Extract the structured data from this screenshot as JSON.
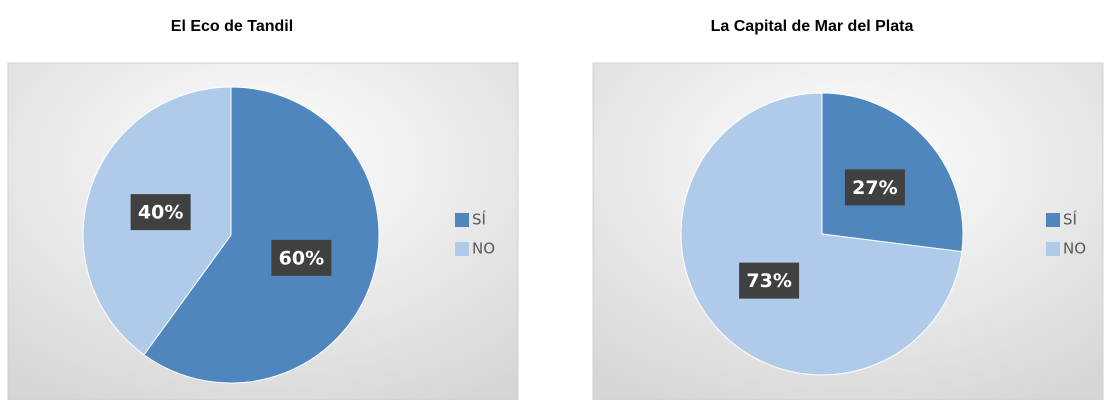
{
  "chart_data": [
    {
      "type": "pie",
      "title": "El Eco de Tandil",
      "categories": [
        "SÍ",
        "NO"
      ],
      "values": [
        60,
        40
      ],
      "value_labels": [
        "60%",
        "40%"
      ],
      "colors": [
        "#4f86be",
        "#afcbe9"
      ],
      "legend": "right"
    },
    {
      "type": "pie",
      "title": "La Capital de Mar del Plata",
      "categories": [
        "SÍ",
        "NO"
      ],
      "values": [
        27,
        73
      ],
      "value_labels": [
        "27%",
        "73%"
      ],
      "colors": [
        "#4f86be",
        "#afcbe9"
      ],
      "legend": "right"
    }
  ]
}
